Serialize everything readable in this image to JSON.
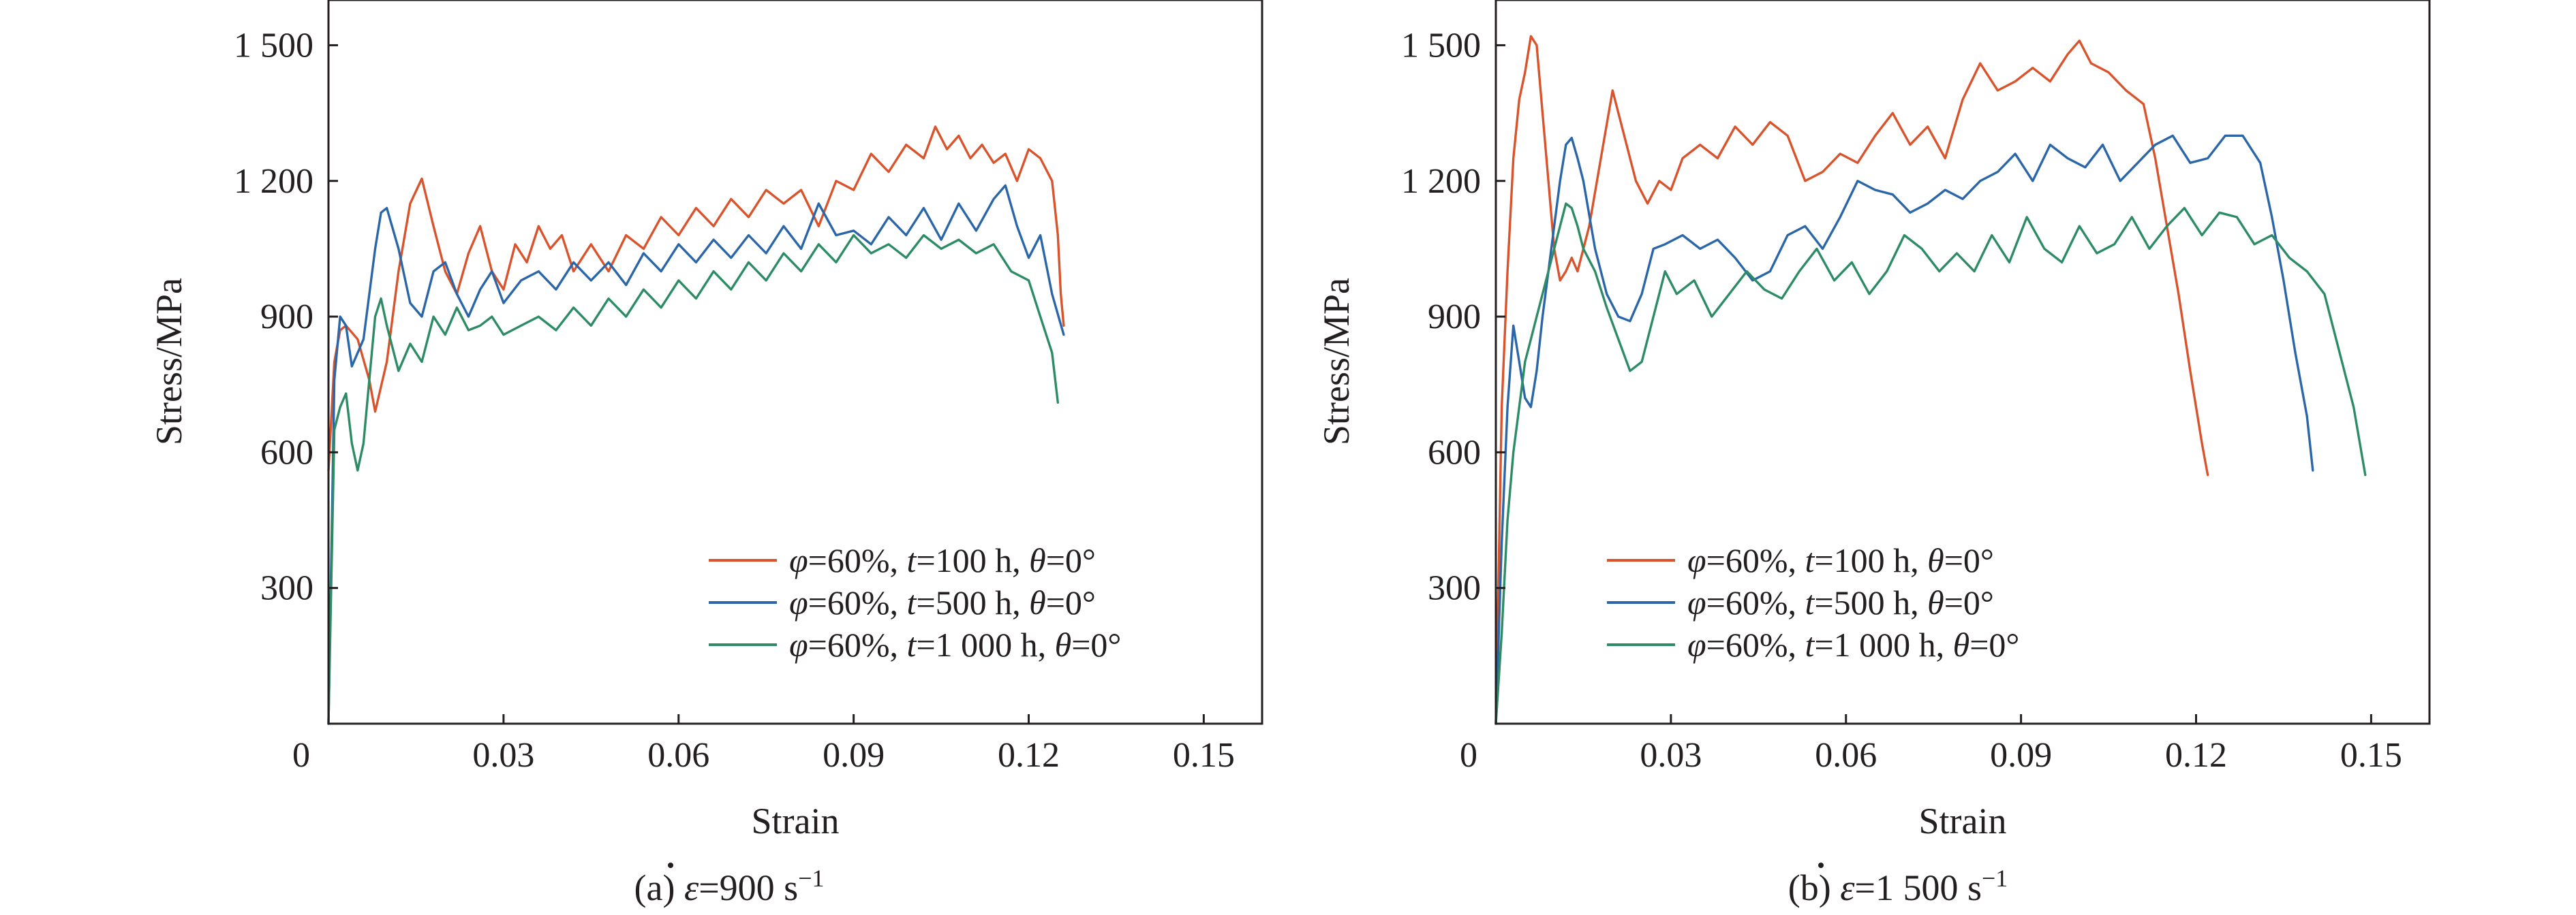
{
  "chart_data": [
    {
      "type": "line",
      "id": "a",
      "caption": {
        "prefix": "(a) ",
        "symbol": "ε",
        "value": "=900 s",
        "sup": "−1"
      },
      "xlabel": "Strain",
      "ylabel": "Stress/MPa",
      "xlim": [
        0,
        0.16
      ],
      "ylim": [
        0,
        1600
      ],
      "xticks": [
        0,
        0.03,
        0.06,
        0.09,
        0.12,
        0.15
      ],
      "xtick_labels": [
        "0",
        "0.03",
        "0.06",
        "0.09",
        "0.12",
        "0.15"
      ],
      "yticks": [
        300,
        600,
        900,
        1200,
        1500
      ],
      "ytick_labels": [
        "300",
        "600",
        "900",
        "1 200",
        "1 500"
      ],
      "legend": "lower-right",
      "grid": false,
      "series": [
        {
          "name": "φ=60%, t=100 h, θ=0°",
          "legend": {
            "phi": "φ",
            "phi_val": "=60%, ",
            "t": "t",
            "t_val": "=100 h, ",
            "theta": "θ",
            "theta_val": "=0°"
          },
          "color": "#d9542c",
          "x": [
            0.0,
            0.001,
            0.002,
            0.003,
            0.005,
            0.007,
            0.008,
            0.01,
            0.012,
            0.014,
            0.016,
            0.018,
            0.02,
            0.022,
            0.024,
            0.026,
            0.028,
            0.03,
            0.032,
            0.034,
            0.036,
            0.038,
            0.04,
            0.042,
            0.045,
            0.048,
            0.051,
            0.054,
            0.057,
            0.06,
            0.063,
            0.066,
            0.069,
            0.072,
            0.075,
            0.078,
            0.081,
            0.084,
            0.087,
            0.09,
            0.093,
            0.096,
            0.099,
            0.102,
            0.104,
            0.106,
            0.108,
            0.11,
            0.112,
            0.114,
            0.116,
            0.118,
            0.12,
            0.122,
            0.124,
            0.125,
            0.1255,
            0.126
          ],
          "y": [
            560,
            800,
            870,
            880,
            850,
            760,
            690,
            800,
            1000,
            1150,
            1205,
            1100,
            1000,
            950,
            1040,
            1100,
            1000,
            960,
            1060,
            1020,
            1100,
            1050,
            1080,
            1000,
            1060,
            1000,
            1080,
            1050,
            1120,
            1080,
            1140,
            1100,
            1160,
            1120,
            1180,
            1150,
            1180,
            1100,
            1200,
            1180,
            1260,
            1220,
            1280,
            1250,
            1320,
            1270,
            1300,
            1250,
            1280,
            1240,
            1260,
            1200,
            1270,
            1250,
            1200,
            1080,
            950,
            880
          ]
        },
        {
          "name": "φ=60%, t=500 h, θ=0°",
          "legend": {
            "phi": "φ",
            "phi_val": "=60%, ",
            "t": "t",
            "t_val": "=500 h, ",
            "theta": "θ",
            "theta_val": "=0°"
          },
          "color": "#2a66a8",
          "x": [
            0.0,
            0.001,
            0.002,
            0.003,
            0.004,
            0.006,
            0.008,
            0.009,
            0.01,
            0.012,
            0.014,
            0.016,
            0.018,
            0.02,
            0.022,
            0.024,
            0.026,
            0.028,
            0.03,
            0.033,
            0.036,
            0.039,
            0.042,
            0.045,
            0.048,
            0.051,
            0.054,
            0.057,
            0.06,
            0.063,
            0.066,
            0.069,
            0.072,
            0.075,
            0.078,
            0.081,
            0.084,
            0.087,
            0.09,
            0.093,
            0.096,
            0.099,
            0.102,
            0.105,
            0.108,
            0.111,
            0.114,
            0.116,
            0.118,
            0.12,
            0.122,
            0.124,
            0.126
          ],
          "y": [
            0,
            760,
            900,
            880,
            790,
            850,
            1050,
            1130,
            1140,
            1050,
            930,
            900,
            1000,
            1020,
            950,
            900,
            960,
            1000,
            930,
            980,
            1000,
            960,
            1020,
            980,
            1020,
            970,
            1040,
            1000,
            1060,
            1020,
            1070,
            1030,
            1080,
            1040,
            1100,
            1050,
            1150,
            1080,
            1090,
            1060,
            1120,
            1080,
            1140,
            1070,
            1150,
            1090,
            1160,
            1190,
            1100,
            1030,
            1080,
            950,
            860
          ]
        },
        {
          "name": "φ=60%, t=1 000 h, θ=0°",
          "legend": {
            "phi": "φ",
            "phi_val": "=60%, ",
            "t": "t",
            "t_val": "=1 000 h, ",
            "theta": "θ",
            "theta_val": "=0°"
          },
          "color": "#2d8c66",
          "x": [
            0.0,
            0.001,
            0.002,
            0.003,
            0.004,
            0.005,
            0.006,
            0.007,
            0.008,
            0.009,
            0.01,
            0.012,
            0.014,
            0.016,
            0.018,
            0.02,
            0.022,
            0.024,
            0.026,
            0.028,
            0.03,
            0.033,
            0.036,
            0.039,
            0.042,
            0.045,
            0.048,
            0.051,
            0.054,
            0.057,
            0.06,
            0.063,
            0.066,
            0.069,
            0.072,
            0.075,
            0.078,
            0.081,
            0.084,
            0.087,
            0.09,
            0.093,
            0.096,
            0.099,
            0.102,
            0.105,
            0.108,
            0.111,
            0.114,
            0.117,
            0.12,
            0.122,
            0.124,
            0.125
          ],
          "y": [
            0,
            650,
            700,
            730,
            620,
            560,
            620,
            760,
            900,
            940,
            880,
            780,
            840,
            800,
            900,
            860,
            920,
            870,
            880,
            900,
            860,
            880,
            900,
            870,
            920,
            880,
            940,
            900,
            960,
            920,
            980,
            940,
            1000,
            960,
            1020,
            980,
            1040,
            1000,
            1060,
            1020,
            1080,
            1040,
            1060,
            1030,
            1080,
            1050,
            1070,
            1040,
            1060,
            1000,
            980,
            900,
            820,
            710
          ]
        }
      ]
    },
    {
      "type": "line",
      "id": "b",
      "caption": {
        "prefix": "(b) ",
        "symbol": "ε",
        "value": "=1 500 s",
        "sup": "−1"
      },
      "xlabel": "Strain",
      "ylabel": "Stress/MPa",
      "xlim": [
        0,
        0.16
      ],
      "ylim": [
        0,
        1600
      ],
      "xticks": [
        0,
        0.03,
        0.06,
        0.09,
        0.12,
        0.15
      ],
      "xtick_labels": [
        "0",
        "0.03",
        "0.06",
        "0.09",
        "0.12",
        "0.15"
      ],
      "yticks": [
        300,
        600,
        900,
        1200,
        1500
      ],
      "ytick_labels": [
        "300",
        "600",
        "900",
        "1 200",
        "1 500"
      ],
      "legend": "lower-center",
      "grid": false,
      "series": [
        {
          "name": "φ=60%, t=100 h, θ=0°",
          "legend": {
            "phi": "φ",
            "phi_val": "=60%, ",
            "t": "t",
            "t_val": "=100 h, ",
            "theta": "θ",
            "theta_val": "=0°"
          },
          "color": "#d9542c",
          "x": [
            0.0,
            0.001,
            0.002,
            0.003,
            0.004,
            0.005,
            0.006,
            0.007,
            0.008,
            0.009,
            0.01,
            0.011,
            0.012,
            0.013,
            0.014,
            0.016,
            0.018,
            0.02,
            0.022,
            0.024,
            0.026,
            0.028,
            0.03,
            0.032,
            0.035,
            0.038,
            0.041,
            0.044,
            0.047,
            0.05,
            0.053,
            0.056,
            0.059,
            0.062,
            0.065,
            0.068,
            0.071,
            0.074,
            0.077,
            0.08,
            0.083,
            0.086,
            0.089,
            0.092,
            0.095,
            0.098,
            0.1,
            0.102,
            0.105,
            0.108,
            0.111,
            0.113,
            0.115,
            0.117,
            0.119,
            0.121,
            0.122
          ],
          "y": [
            0,
            700,
            1000,
            1250,
            1380,
            1440,
            1520,
            1500,
            1350,
            1200,
            1050,
            980,
            1000,
            1030,
            1000,
            1100,
            1250,
            1400,
            1300,
            1200,
            1150,
            1200,
            1180,
            1250,
            1280,
            1250,
            1320,
            1280,
            1330,
            1300,
            1200,
            1220,
            1260,
            1240,
            1300,
            1350,
            1280,
            1320,
            1250,
            1380,
            1460,
            1400,
            1420,
            1450,
            1420,
            1480,
            1510,
            1460,
            1440,
            1400,
            1370,
            1250,
            1100,
            950,
            780,
            620,
            550
          ]
        },
        {
          "name": "φ=60%, t=500 h, θ=0°",
          "legend": {
            "phi": "φ",
            "phi_val": "=60%, ",
            "t": "t",
            "t_val": "=500 h, ",
            "theta": "θ",
            "theta_val": "=0°"
          },
          "color": "#2a66a8",
          "x": [
            0.0,
            0.001,
            0.002,
            0.003,
            0.004,
            0.005,
            0.006,
            0.007,
            0.008,
            0.009,
            0.01,
            0.011,
            0.012,
            0.013,
            0.014,
            0.015,
            0.017,
            0.019,
            0.021,
            0.023,
            0.025,
            0.027,
            0.029,
            0.032,
            0.035,
            0.038,
            0.041,
            0.044,
            0.047,
            0.05,
            0.053,
            0.056,
            0.059,
            0.062,
            0.065,
            0.068,
            0.071,
            0.074,
            0.077,
            0.08,
            0.083,
            0.086,
            0.089,
            0.092,
            0.095,
            0.098,
            0.101,
            0.104,
            0.107,
            0.11,
            0.113,
            0.116,
            0.119,
            0.122,
            0.125,
            0.128,
            0.131,
            0.133,
            0.135,
            0.137,
            0.139,
            0.14
          ],
          "y": [
            0,
            400,
            700,
            880,
            800,
            720,
            700,
            780,
            900,
            1000,
            1100,
            1200,
            1280,
            1295,
            1250,
            1200,
            1050,
            950,
            900,
            890,
            950,
            1050,
            1060,
            1080,
            1050,
            1070,
            1030,
            980,
            1000,
            1080,
            1100,
            1050,
            1120,
            1200,
            1180,
            1170,
            1130,
            1150,
            1180,
            1160,
            1200,
            1220,
            1260,
            1200,
            1280,
            1250,
            1230,
            1280,
            1200,
            1240,
            1280,
            1300,
            1240,
            1250,
            1300,
            1300,
            1240,
            1120,
            980,
            820,
            680,
            560
          ]
        },
        {
          "name": "φ=60%, t=1 000 h, θ=0°",
          "legend": {
            "phi": "φ",
            "phi_val": "=60%, ",
            "t": "t",
            "t_val": "=1 000 h, ",
            "theta": "θ",
            "theta_val": "=0°"
          },
          "color": "#2d8c66",
          "x": [
            0.0,
            0.001,
            0.002,
            0.003,
            0.004,
            0.005,
            0.006,
            0.007,
            0.008,
            0.009,
            0.01,
            0.011,
            0.012,
            0.013,
            0.014,
            0.015,
            0.017,
            0.019,
            0.021,
            0.023,
            0.025,
            0.027,
            0.029,
            0.031,
            0.034,
            0.037,
            0.04,
            0.043,
            0.046,
            0.049,
            0.052,
            0.055,
            0.058,
            0.061,
            0.064,
            0.067,
            0.07,
            0.073,
            0.076,
            0.079,
            0.082,
            0.085,
            0.088,
            0.091,
            0.094,
            0.097,
            0.1,
            0.103,
            0.106,
            0.109,
            0.112,
            0.115,
            0.118,
            0.121,
            0.124,
            0.127,
            0.13,
            0.133,
            0.136,
            0.139,
            0.142,
            0.145,
            0.147,
            0.149
          ],
          "y": [
            0,
            200,
            450,
            600,
            700,
            800,
            850,
            900,
            950,
            1000,
            1050,
            1100,
            1150,
            1140,
            1100,
            1050,
            1000,
            920,
            850,
            780,
            800,
            900,
            1000,
            950,
            980,
            900,
            950,
            1000,
            960,
            940,
            1000,
            1050,
            980,
            1020,
            950,
            1000,
            1080,
            1050,
            1000,
            1040,
            1000,
            1080,
            1020,
            1120,
            1050,
            1020,
            1100,
            1040,
            1060,
            1120,
            1050,
            1100,
            1140,
            1080,
            1130,
            1120,
            1060,
            1080,
            1030,
            1000,
            950,
            800,
            700,
            550
          ]
        }
      ]
    }
  ]
}
